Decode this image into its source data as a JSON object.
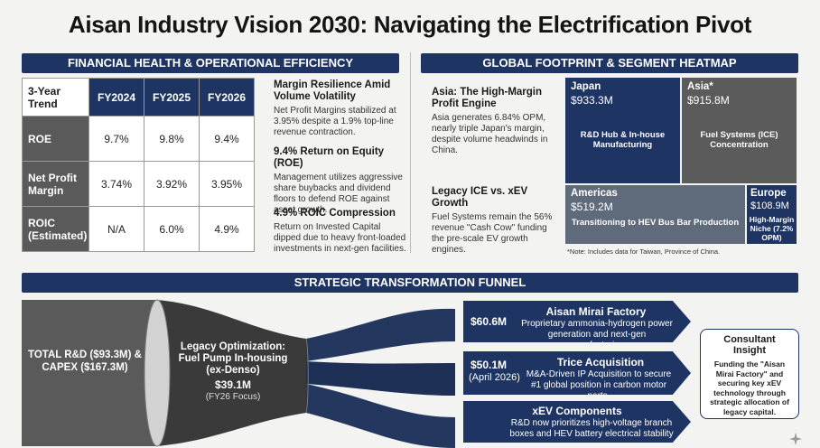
{
  "title": "Aisan Industry Vision 2030: Navigating the Electrification Pivot",
  "colors": {
    "navy": "#1e3462",
    "gray": "#5a5a5a",
    "light": "#f3f3f1"
  },
  "financial": {
    "header": "FINANCIAL HEALTH & OPERATIONAL EFFICIENCY",
    "table": {
      "corner": "3-Year Trend",
      "columns": [
        "FY2024",
        "FY2025",
        "FY2026"
      ],
      "rows": [
        {
          "label": "ROE",
          "values": [
            "9.7%",
            "9.8%",
            "9.4%"
          ]
        },
        {
          "label": "Net Profit Margin",
          "values": [
            "3.74%",
            "3.92%",
            "3.95%"
          ]
        },
        {
          "label": "ROIC (Estimated)",
          "values": [
            "N/A",
            "6.0%",
            "4.9%"
          ]
        }
      ]
    },
    "insights": [
      {
        "heading": "Margin Resilience Amid Volume Volatility",
        "body": "Net Profit Margins stabilized at 3.95% despite a 1.9% top-line revenue contraction."
      },
      {
        "heading": "9.4% Return on Equity (ROE)",
        "body": "Management utilizes aggressive share buybacks and dividend floors to defend ROE against asset growth."
      },
      {
        "heading": "4.9% ROIC Compression",
        "body": "Return on Invested Capital dipped due to heavy front-loaded investments in next-gen facilities."
      }
    ]
  },
  "footprint": {
    "header": "GLOBAL FOOTPRINT & SEGMENT HEATMAP",
    "insights": [
      {
        "heading": "Asia: The High-Margin Profit Engine",
        "body": "Asia generates 6.84% OPM, nearly triple Japan's margin, despite volume headwinds in China."
      },
      {
        "heading": "Legacy ICE vs. xEV Growth",
        "body": "Fuel Systems remain the 56% revenue \"Cash Cow\" funding the pre-scale EV growth engines."
      }
    ],
    "cells": {
      "japan": {
        "name": "Japan",
        "value": "$933.3M",
        "desc": "R&D Hub & In-house Manufacturing"
      },
      "asia": {
        "name": "Asia*",
        "value": "$915.8M",
        "desc": "Fuel Systems (ICE) Concentration"
      },
      "americas": {
        "name": "Americas",
        "value": "$519.2M",
        "desc": "Transitioning to HEV Bus Bar Production"
      },
      "europe": {
        "name": "Europe",
        "value": "$108.9M",
        "desc": "High-Margin Niche (7.2% OPM)"
      }
    },
    "note": "*Note: Includes data for Taiwan, Province of China."
  },
  "funnel": {
    "header": "STRATEGIC TRANSFORMATION FUNNEL",
    "input": "TOTAL R&D ($93.3M) & CAPEX ($167.3M)",
    "middle": {
      "title": "Legacy Optimization: Fuel Pump In-housing (ex-Denso)",
      "value": "$39.1M",
      "note": "(FY26 Focus)"
    },
    "outputs": [
      {
        "amount": "$60.6M",
        "sub": "",
        "title": "Aisan Mirai Factory",
        "text": "Proprietary ammonia-hydrogen power generation and next-gen manufacturing."
      },
      {
        "amount": "$50.1M",
        "sub": "(April 2026)",
        "title": "Trice Acquisition",
        "text": "M&A-Driven IP Acquisition to secure #1 global position in carbon motor parts."
      },
      {
        "amount": "",
        "sub": "",
        "title": "xEV Components",
        "text": "R&D now prioritizes high-voltage branch boxes and HEV battery electrical stability"
      }
    ],
    "consultant": {
      "title": "Consultant Insight",
      "body": "Funding the \"Aisan Mirai Factory\" and securing key xEV technology through strategic allocation of legacy capital."
    }
  }
}
